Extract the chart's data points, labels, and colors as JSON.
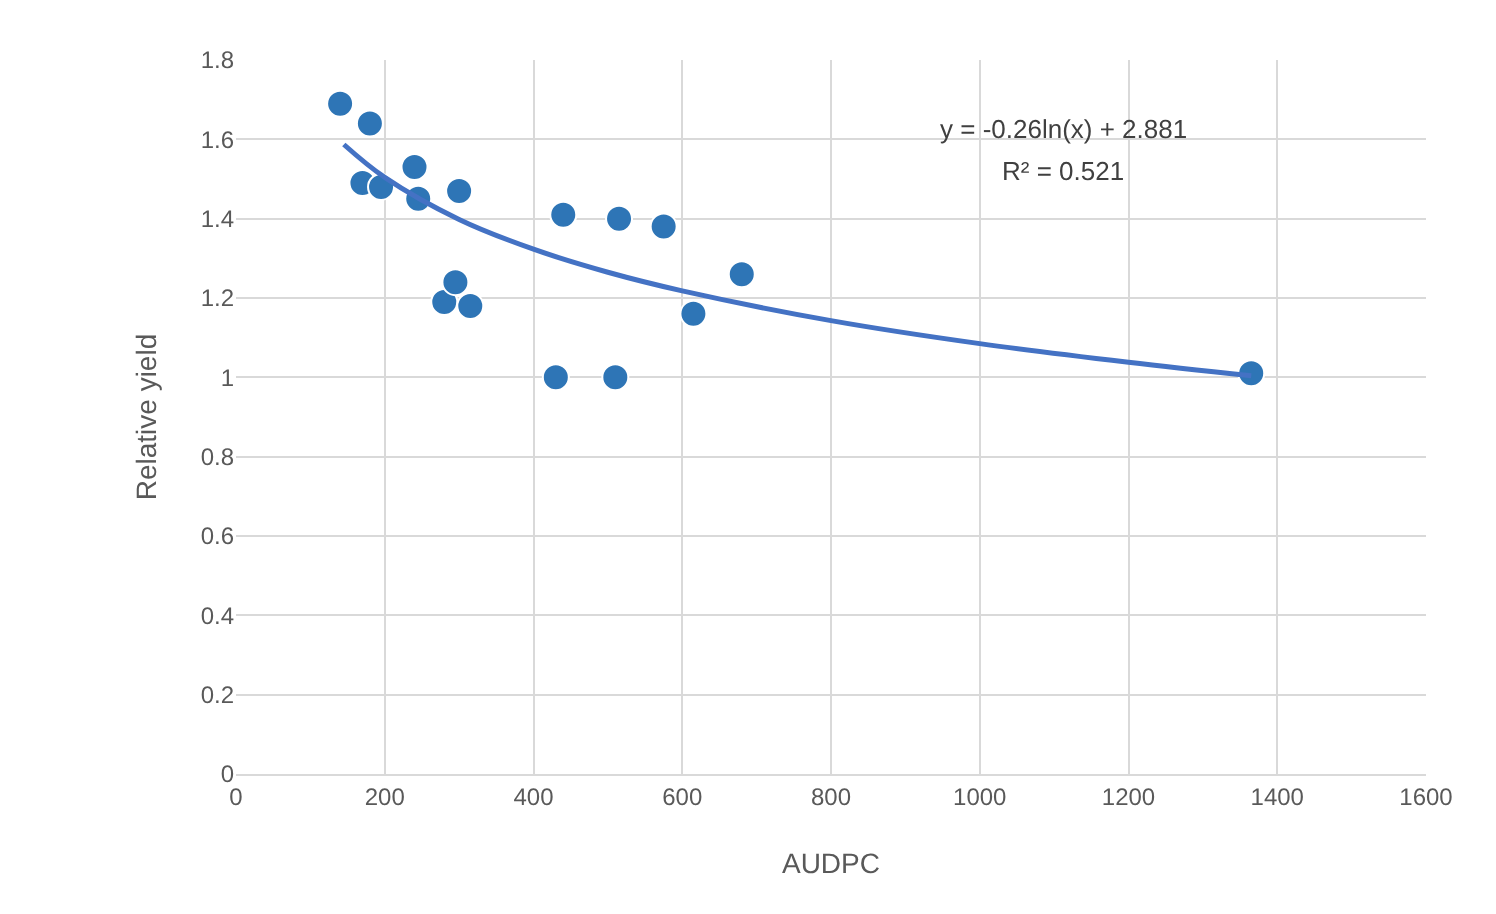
{
  "chart_data": {
    "type": "scatter",
    "xlabel": "AUDPC",
    "ylabel": "Relative yield",
    "annotations": [
      "y = -0.26ln(x) + 2.881",
      "R² = 0.521"
    ],
    "series": [
      {
        "color": "#2e75b6",
        "x": [
          140,
          180,
          170,
          195,
          240,
          245,
          300,
          280,
          295,
          315,
          430,
          440,
          510,
          515,
          575,
          615,
          680,
          1365
        ],
        "values": [
          1.69,
          1.64,
          1.49,
          1.48,
          1.53,
          1.45,
          1.47,
          1.19,
          1.24,
          1.18,
          1.0,
          1.41,
          1.0,
          1.4,
          1.38,
          1.16,
          1.26,
          1.01
        ]
      },
      {
        "type": "line",
        "color": "#4472c4",
        "marker": "none",
        "x": [
          145,
          200,
          300,
          400,
          500,
          600,
          800,
          1000,
          1200,
          1365
        ],
        "values": [
          1.587,
          1.504,
          1.398,
          1.323,
          1.265,
          1.218,
          1.143,
          1.085,
          1.038,
          1.004
        ]
      }
    ],
    "xlim": [
      0,
      1600
    ],
    "xticks": [
      0,
      200,
      400,
      600,
      800,
      1000,
      1200,
      1400,
      1600
    ],
    "ylim": [
      0,
      1.8
    ],
    "yticks": [
      0,
      {
        "value": 0.2,
        "label": "0.2"
      },
      {
        "value": 0.4,
        "label": "0.4"
      },
      {
        "value": 0.6,
        "label": "0.6"
      },
      {
        "value": 0.8,
        "label": "0.8"
      },
      1,
      {
        "value": 1.2,
        "label": "1.2"
      },
      {
        "value": 1.4,
        "label": "1.4"
      },
      {
        "value": 1.6,
        "label": "1.6"
      },
      {
        "value": 1.8,
        "label": "1.8"
      }
    ],
    "grid": true,
    "legend": false,
    "marker": "circle"
  }
}
